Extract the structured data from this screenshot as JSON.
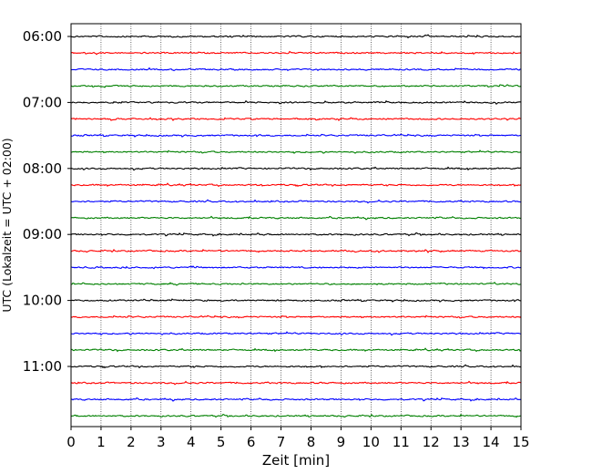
{
  "chart_data": {
    "type": "line",
    "title": "",
    "xlabel": "Zeit  [min]",
    "ylabel": "UTC (Lokalzeit = UTC + 02:00)",
    "xlim": [
      0,
      15
    ],
    "x_ticks": [
      "0",
      "1",
      "2",
      "3",
      "4",
      "5",
      "6",
      "7",
      "8",
      "9",
      "10",
      "11",
      "12",
      "13",
      "14",
      "15"
    ],
    "y_ticks": [
      "06:00",
      "07:00",
      "08:00",
      "09:00",
      "10:00",
      "11:00"
    ],
    "grid_x": true,
    "grid_y": false,
    "traces_per_hour": 4,
    "trace_minutes": 15,
    "series": [
      {
        "start": "06:00",
        "color": "#000000"
      },
      {
        "start": "06:15",
        "color": "#ff0000"
      },
      {
        "start": "06:30",
        "color": "#0000ff"
      },
      {
        "start": "06:45",
        "color": "#008000"
      },
      {
        "start": "07:00",
        "color": "#000000"
      },
      {
        "start": "07:15",
        "color": "#ff0000"
      },
      {
        "start": "07:30",
        "color": "#0000ff"
      },
      {
        "start": "07:45",
        "color": "#008000"
      },
      {
        "start": "08:00",
        "color": "#000000"
      },
      {
        "start": "08:15",
        "color": "#ff0000"
      },
      {
        "start": "08:30",
        "color": "#0000ff"
      },
      {
        "start": "08:45",
        "color": "#008000"
      },
      {
        "start": "09:00",
        "color": "#000000"
      },
      {
        "start": "09:15",
        "color": "#ff0000"
      },
      {
        "start": "09:30",
        "color": "#0000ff"
      },
      {
        "start": "09:45",
        "color": "#008000"
      },
      {
        "start": "10:00",
        "color": "#000000"
      },
      {
        "start": "10:15",
        "color": "#ff0000"
      },
      {
        "start": "10:30",
        "color": "#0000ff"
      },
      {
        "start": "10:45",
        "color": "#008000"
      },
      {
        "start": "11:00",
        "color": "#000000"
      },
      {
        "start": "11:15",
        "color": "#ff0000"
      },
      {
        "start": "11:30",
        "color": "#0000ff"
      },
      {
        "start": "11:45",
        "color": "#008000"
      }
    ]
  }
}
